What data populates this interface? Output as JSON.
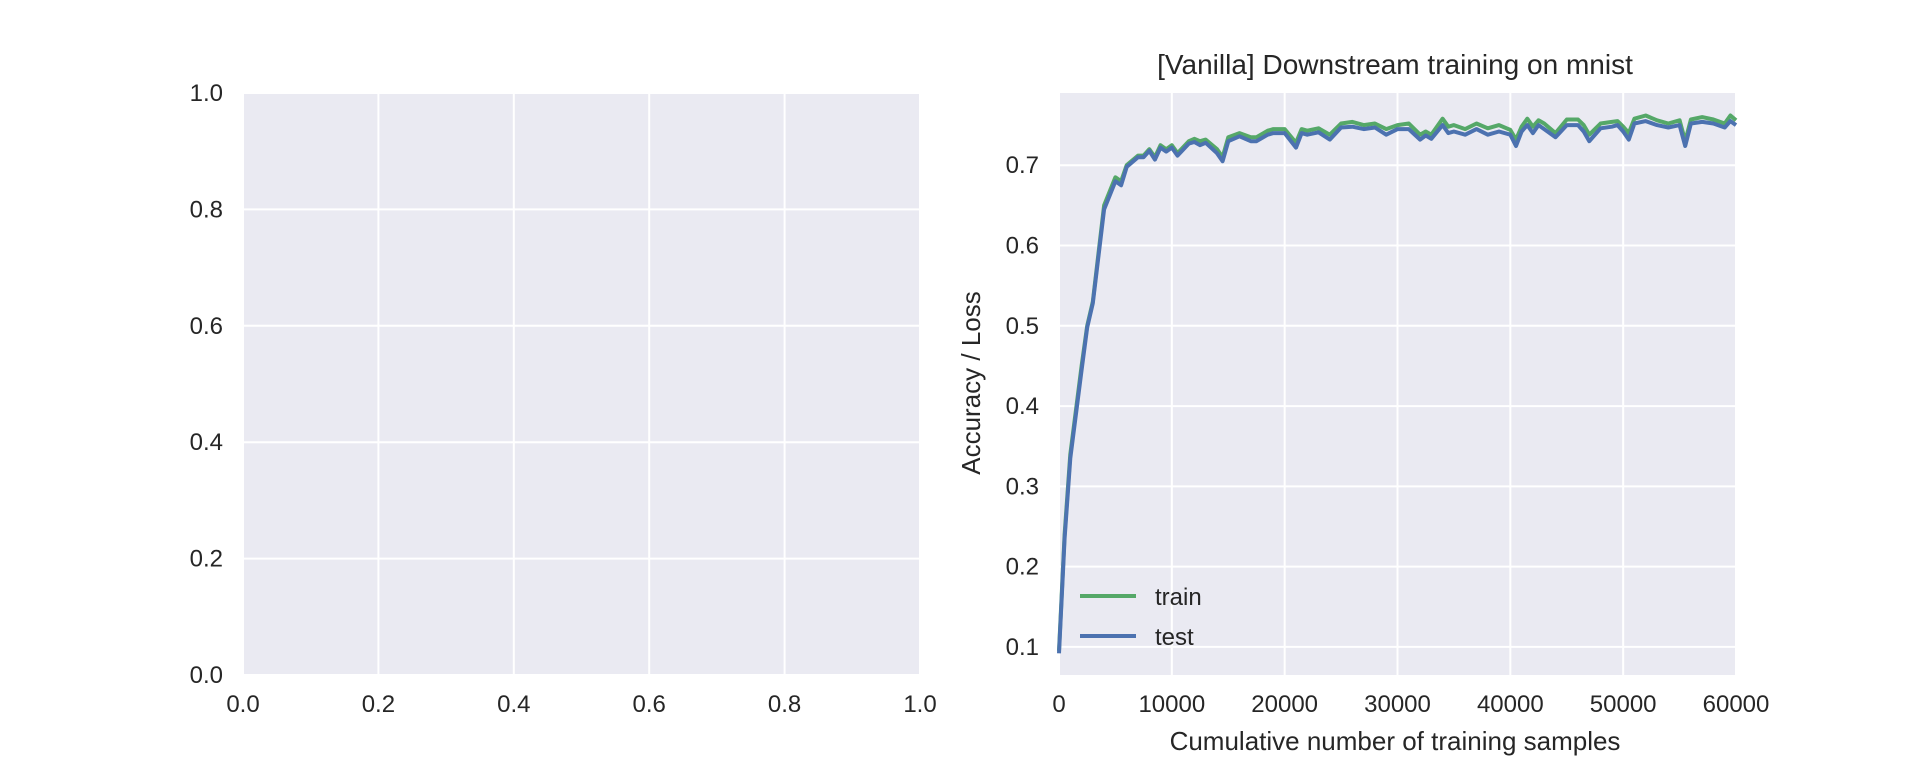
{
  "colors": {
    "background": "#ffffff",
    "axes_face": "#eaeaf2",
    "grid": "#ffffff",
    "text": "#262626"
  },
  "chart_data": [
    {
      "type": "line",
      "title": "",
      "xlabel": "",
      "ylabel": "",
      "xlim": [
        0.0,
        1.0
      ],
      "ylim": [
        0.0,
        1.0
      ],
      "xticks": [
        "0.0",
        "0.2",
        "0.4",
        "0.6",
        "0.8",
        "1.0"
      ],
      "yticks": [
        "0.0",
        "0.2",
        "0.4",
        "0.6",
        "0.8",
        "1.0"
      ],
      "grid": true,
      "series": []
    },
    {
      "type": "line",
      "title": "[Vanilla] Downstream training on mnist",
      "xlabel": "Cumulative number of training samples",
      "ylabel": "Accuracy / Loss",
      "xlim": [
        0,
        60000
      ],
      "ylim": [
        0.065,
        0.79
      ],
      "xticks": [
        "0",
        "10000",
        "20000",
        "30000",
        "40000",
        "50000",
        "60000"
      ],
      "yticks": [
        "0.1",
        "0.2",
        "0.3",
        "0.4",
        "0.5",
        "0.6",
        "0.7"
      ],
      "grid": true,
      "legend_position": "lower-left",
      "x": [
        0,
        500,
        1000,
        2000,
        2500,
        3000,
        4000,
        5000,
        5500,
        6000,
        7000,
        7500,
        8000,
        8500,
        9000,
        9500,
        10000,
        10500,
        11500,
        12000,
        12500,
        13000,
        14000,
        14500,
        15000,
        16000,
        17000,
        17500,
        18500,
        19000,
        20000,
        21000,
        21500,
        22000,
        23000,
        24000,
        25000,
        26000,
        27000,
        28000,
        29000,
        30000,
        31000,
        32000,
        32500,
        33000,
        34000,
        34500,
        35000,
        36000,
        37000,
        38000,
        39000,
        40000,
        40500,
        41000,
        41500,
        42000,
        42500,
        43000,
        44000,
        45000,
        46000,
        46500,
        47000,
        48000,
        49000,
        49500,
        50000,
        50500,
        51000,
        52000,
        53000,
        54000,
        55000,
        55500,
        56000,
        57000,
        58000,
        59000,
        59500,
        60000
      ],
      "series": [
        {
          "name": "train",
          "color": "#55a868",
          "values": [
            0.095,
            0.24,
            0.34,
            0.45,
            0.5,
            0.53,
            0.65,
            0.685,
            0.68,
            0.7,
            0.712,
            0.712,
            0.72,
            0.71,
            0.725,
            0.72,
            0.725,
            0.715,
            0.73,
            0.733,
            0.73,
            0.732,
            0.72,
            0.71,
            0.735,
            0.74,
            0.735,
            0.735,
            0.743,
            0.745,
            0.745,
            0.728,
            0.745,
            0.743,
            0.746,
            0.738,
            0.752,
            0.754,
            0.75,
            0.752,
            0.745,
            0.75,
            0.752,
            0.738,
            0.742,
            0.738,
            0.758,
            0.748,
            0.75,
            0.745,
            0.752,
            0.746,
            0.75,
            0.744,
            0.732,
            0.748,
            0.758,
            0.748,
            0.756,
            0.752,
            0.74,
            0.757,
            0.757,
            0.75,
            0.738,
            0.752,
            0.754,
            0.755,
            0.748,
            0.74,
            0.758,
            0.762,
            0.756,
            0.752,
            0.756,
            0.73,
            0.757,
            0.76,
            0.757,
            0.752,
            0.762,
            0.756
          ]
        },
        {
          "name": "test",
          "color": "#4c72b0",
          "values": [
            0.092,
            0.235,
            0.335,
            0.445,
            0.498,
            0.528,
            0.645,
            0.68,
            0.675,
            0.698,
            0.71,
            0.71,
            0.718,
            0.707,
            0.722,
            0.717,
            0.722,
            0.712,
            0.727,
            0.729,
            0.725,
            0.728,
            0.715,
            0.705,
            0.73,
            0.736,
            0.73,
            0.73,
            0.738,
            0.74,
            0.74,
            0.722,
            0.74,
            0.738,
            0.741,
            0.732,
            0.747,
            0.748,
            0.745,
            0.747,
            0.738,
            0.745,
            0.745,
            0.732,
            0.737,
            0.733,
            0.75,
            0.74,
            0.742,
            0.738,
            0.745,
            0.738,
            0.742,
            0.738,
            0.724,
            0.742,
            0.75,
            0.74,
            0.75,
            0.745,
            0.735,
            0.75,
            0.75,
            0.742,
            0.73,
            0.746,
            0.748,
            0.75,
            0.742,
            0.732,
            0.752,
            0.755,
            0.75,
            0.747,
            0.75,
            0.724,
            0.752,
            0.754,
            0.752,
            0.747,
            0.755,
            0.75
          ]
        }
      ]
    }
  ]
}
